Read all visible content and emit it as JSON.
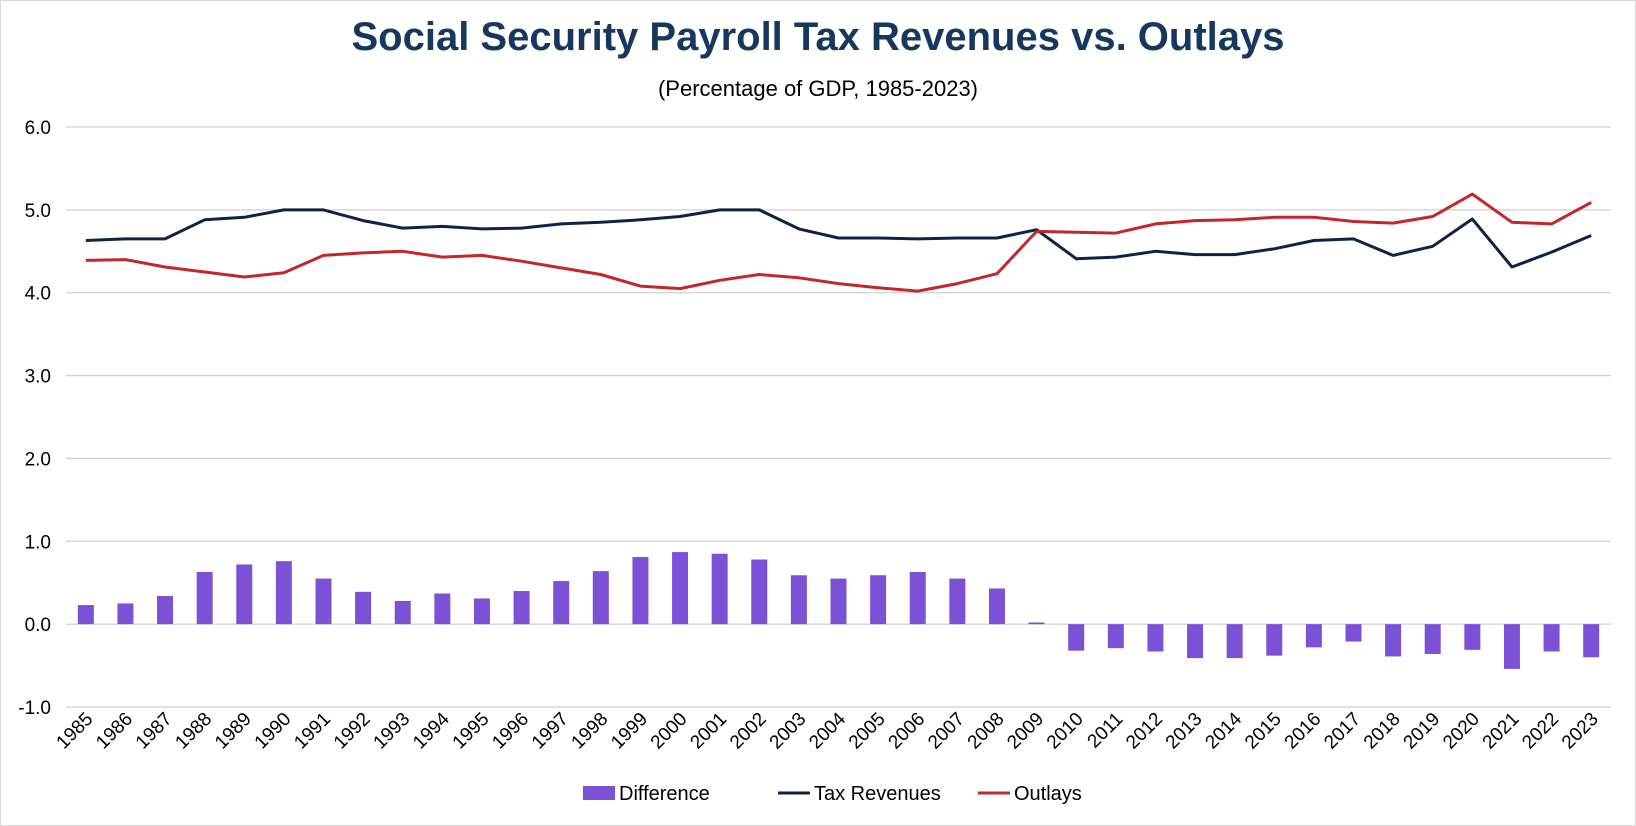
{
  "chart_data": {
    "type": "bar+line",
    "title": "Social Security Payroll Tax Revenues vs. Outlays",
    "subtitle": "(Percentage of GDP, 1985-2023)",
    "categories": [
      "1985",
      "1986",
      "1987",
      "1988",
      "1989",
      "1990",
      "1991",
      "1992",
      "1993",
      "1994",
      "1995",
      "1996",
      "1997",
      "1998",
      "1999",
      "2000",
      "2001",
      "2002",
      "2003",
      "2004",
      "2005",
      "2006",
      "2007",
      "2008",
      "2009",
      "2010",
      "2011",
      "2012",
      "2013",
      "2014",
      "2015",
      "2016",
      "2017",
      "2018",
      "2019",
      "2020",
      "2021",
      "2022",
      "2023"
    ],
    "ylim": [
      -1.0,
      6.0
    ],
    "yticks": [
      "-1.0",
      "0.0",
      "1.0",
      "2.0",
      "3.0",
      "4.0",
      "5.0",
      "6.0"
    ],
    "grid": true,
    "legend_position": "bottom",
    "series": [
      {
        "name": "Difference",
        "type": "bar",
        "color": "#7b52d6",
        "values": [
          0.23,
          0.25,
          0.34,
          0.63,
          0.72,
          0.76,
          0.55,
          0.39,
          0.28,
          0.37,
          0.31,
          0.4,
          0.52,
          0.64,
          0.81,
          0.87,
          0.85,
          0.78,
          0.59,
          0.55,
          0.59,
          0.63,
          0.55,
          0.43,
          0.02,
          -0.32,
          -0.29,
          -0.33,
          -0.41,
          -0.41,
          -0.38,
          -0.28,
          -0.21,
          -0.39,
          -0.36,
          -0.31,
          -0.54,
          -0.33,
          -0.4
        ]
      },
      {
        "name": "Tax Revenues",
        "type": "line",
        "color": "#0f2345",
        "values": [
          4.63,
          4.65,
          4.65,
          4.88,
          4.91,
          5.0,
          5.0,
          4.87,
          4.78,
          4.8,
          4.77,
          4.78,
          4.83,
          4.85,
          4.88,
          4.92,
          5.0,
          5.0,
          4.77,
          4.66,
          4.66,
          4.65,
          4.66,
          4.66,
          4.76,
          4.41,
          4.43,
          4.5,
          4.46,
          4.46,
          4.53,
          4.63,
          4.65,
          4.45,
          4.56,
          4.89,
          4.31,
          4.49,
          4.69
        ]
      },
      {
        "name": "Outlays",
        "type": "line",
        "color": "#c1272d",
        "values": [
          4.39,
          4.4,
          4.31,
          4.25,
          4.19,
          4.24,
          4.45,
          4.48,
          4.5,
          4.43,
          4.45,
          4.38,
          4.3,
          4.22,
          4.08,
          4.05,
          4.15,
          4.22,
          4.18,
          4.11,
          4.06,
          4.02,
          4.11,
          4.23,
          4.74,
          4.73,
          4.72,
          4.83,
          4.87,
          4.88,
          4.91,
          4.91,
          4.86,
          4.84,
          4.92,
          5.19,
          4.85,
          4.83,
          5.09
        ]
      }
    ]
  }
}
